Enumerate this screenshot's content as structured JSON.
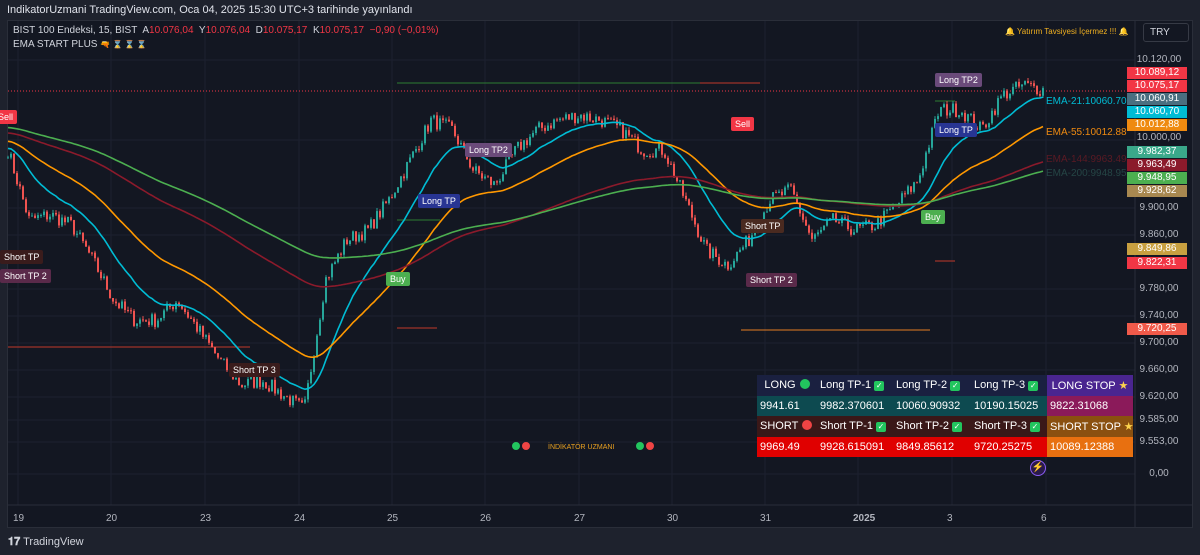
{
  "header": {
    "title": "IndikatorUzmani TradingView.com, Oca 04, 2025 15:30 UTC+3 tarihinde yayınlandı"
  },
  "legend": {
    "symbol": "BIST 100 Endeksi, 15, BIST",
    "o_label": "A",
    "o": "10.076,04",
    "h_label": "Y",
    "h": "10.076,04",
    "l_label": "D",
    "l": "10.075,17",
    "c_label": "K",
    "c": "10.075,17",
    "change": "−0,90 (−0,01%)",
    "indicator": "EMA START PLUS",
    "indicator_icons": "🔫 ⌛ ⌛ ⌛"
  },
  "warning": "🔔 Yatırım Tavsiyesi İçermez !!! 🔔",
  "currency": "TRY",
  "watermark": "İNDİKATÖR UZMANI",
  "footer": "TradingView",
  "colors": {
    "bg": "#131722",
    "up": "#26a69a",
    "down": "#ef5350",
    "ema21": "#00bcd4",
    "ema55": "#ff9800",
    "ema144": "#8b1a2b",
    "ema200": "#4caf50"
  },
  "chart_data": {
    "type": "candlestick",
    "x_ticks": [
      "19",
      "20",
      "23",
      "24",
      "25",
      "26",
      "27",
      "30",
      "31",
      "2025",
      "3",
      "6"
    ],
    "y_ticks": [
      "10.120,00",
      "10.000,00",
      "9.900,00",
      "9.860,00",
      "9.780,00",
      "9.740,00",
      "9.700,00",
      "9.660,00",
      "9.620,00",
      "9.585,00",
      "9.553,00",
      "0,00"
    ],
    "ylim": [
      9553,
      10120
    ],
    "price_path": [
      9986,
      9882,
      9890,
      9875,
      9823,
      9763,
      9733,
      9733,
      9763,
      9719,
      9674,
      9637,
      9644,
      9622,
      9600,
      9793,
      9852,
      9867,
      9912,
      9971,
      10031,
      10016,
      9956,
      9934,
      9986,
      10016,
      10031,
      10038,
      10031,
      10016,
      9986,
      9986,
      9912,
      9837,
      9815,
      9852,
      9912,
      9927,
      9852,
      9882,
      9867,
      9875,
      9905,
      9941,
      10046,
      10046,
      10016,
      10068,
      10083,
      10075
    ],
    "ema_seed": {
      "ema21": 9990,
      "ema55": 10000,
      "ema144": 10012,
      "ema200": 10020
    },
    "ema_labels": [
      "EMA-21:10060.70",
      "EMA-55:10012.88",
      "EMA-144:9963.49",
      "EMA-200:9948.95"
    ],
    "price_labels": [
      {
        "text": "10.089,12",
        "color": "#f23645"
      },
      {
        "text": "10.075,17",
        "color": "#f23645"
      },
      {
        "text": "10.060,91",
        "color": "#4a6f80"
      },
      {
        "text": "10.060,70",
        "color": "#00bcd4"
      },
      {
        "text": "10.012,88",
        "color": "#ef8a10"
      },
      {
        "text": "9.982,37",
        "color": "#3aa88a"
      },
      {
        "text": "9.963,49",
        "color": "#8b1a2b"
      },
      {
        "text": "9.948,95",
        "color": "#4caf50"
      },
      {
        "text": "9.928,62",
        "color": "#a88850"
      },
      {
        "text": "9.849,86",
        "color": "#c8a040"
      },
      {
        "text": "9.822,31",
        "color": "#f23645"
      },
      {
        "text": "9.720,25",
        "color": "#f05a4a"
      }
    ],
    "signals": [
      "Sell",
      "Short TP",
      "Short TP 2",
      "Short TP 3",
      "Buy",
      "Long TP",
      "Long TP2",
      "Sell",
      "Short TP",
      "Short TP 2",
      "Buy",
      "Long TP2",
      "Long TP"
    ]
  },
  "table": {
    "long": [
      "LONG",
      "Long TP-1",
      "Long TP-2",
      "Long TP-3",
      "LONG STOP"
    ],
    "long_values": [
      "9941.61",
      "9982.370601",
      "10060.90932",
      "10190.15025",
      "9822.31068"
    ],
    "short": [
      "SHORT",
      "Short TP-1",
      "Short TP-2",
      "Short TP-3",
      "SHORT STOP"
    ],
    "short_values": [
      "9969.49",
      "9928.615091",
      "9849.85612",
      "9720.25275",
      "10089.12388"
    ]
  }
}
